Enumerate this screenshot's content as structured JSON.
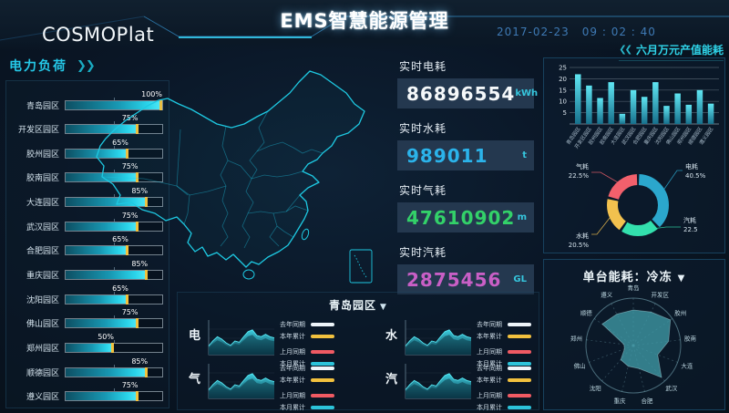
{
  "header": {
    "logo": "COSMOPlat",
    "title": "EMS智慧能源管理",
    "date": "2017-02-23",
    "time": "09 : 02 : 40"
  },
  "left_panel": {
    "title": "电力负荷",
    "chevron_icon": "❯❯"
  },
  "right_top": {
    "title": "六月万元产值能耗",
    "chevron_icon": "❮❮"
  },
  "right_bottom": {
    "title": "单台能耗：冷冻",
    "dropdown_icon": "▼"
  },
  "stats": {
    "items": [
      {
        "label": "实时电耗",
        "value": "86896554",
        "unit": "kWh",
        "color": "#f5f8fa"
      },
      {
        "label": "实时水耗",
        "value": "989011",
        "unit": "t",
        "color": "#2bb3ea"
      },
      {
        "label": "实时气耗",
        "value": "47610902",
        "unit": "m",
        "color": "#33d169"
      },
      {
        "label": "实时汽耗",
        "value": "2875456",
        "unit": "GL",
        "color": "#c95fc6"
      }
    ]
  },
  "bottom_panel": {
    "park": "青岛园区",
    "dropdown_icon": "▼",
    "charts": [
      "电",
      "水",
      "气",
      "汽"
    ],
    "legend": [
      {
        "label": "去年同期",
        "color": "#eef5fa"
      },
      {
        "label": "本年累计",
        "color": "#f2c13e"
      },
      {
        "label": "上月同期",
        "color": "#f05a63"
      },
      {
        "label": "本月累计",
        "color": "#2cc3da"
      }
    ]
  },
  "chart_data": [
    {
      "id": "monthly_output_energy",
      "type": "bar",
      "title": "六月万元产值能耗",
      "categories": [
        "青岛园区",
        "开发区园区",
        "胶州园区",
        "胶南园区",
        "大连园区",
        "武汉园区",
        "合肥园区",
        "重庆园区",
        "沈阳园区",
        "佛山园区",
        "郑州园区",
        "顺德园区",
        "遵义园区"
      ],
      "values": [
        22,
        17,
        11.5,
        18.5,
        4.5,
        15,
        12,
        18.5,
        8,
        13.5,
        8.5,
        15,
        9
      ],
      "ylim": [
        0,
        25
      ],
      "yticks": [
        5,
        10,
        15,
        20,
        25
      ],
      "grid": true,
      "bar_color_top": "#5fe5f2",
      "bar_color_bottom": "#17708c"
    },
    {
      "id": "energy_share",
      "type": "pie",
      "donut": true,
      "labels": [
        "电耗",
        "汽耗",
        "水耗",
        "气耗"
      ],
      "values": [
        40.5,
        22.5,
        20.5,
        22.5
      ],
      "display": [
        "40.5%",
        "22.5",
        "20.5%",
        "22.5%"
      ],
      "colors": [
        "#2ba7cd",
        "#33e0ad",
        "#f2c14e",
        "#f2606c"
      ],
      "legend_position": "callout-lines"
    },
    {
      "id": "per_unit_energy_freezing",
      "type": "radar",
      "title": "单台能耗：冷冻",
      "categories": [
        "青岛",
        "开发区",
        "胶州",
        "胶南",
        "大连",
        "武汉",
        "合肥",
        "重庆",
        "沈阳",
        "佛山",
        "郑州",
        "顺德",
        "遵义"
      ],
      "values": [
        75,
        80,
        95,
        75,
        55,
        90,
        50,
        45,
        40,
        20,
        20,
        80,
        75
      ],
      "max": 100,
      "fill_color": "#3f9aa7"
    },
    {
      "id": "power_load",
      "type": "bar-horizontal",
      "title": "电力负荷",
      "categories": [
        "青岛园区",
        "开发区园区",
        "胶州园区",
        "胶南园区",
        "大连园区",
        "武汉园区",
        "合肥园区",
        "重庆园区",
        "沈阳园区",
        "佛山园区",
        "郑州园区",
        "顺德园区",
        "遵义园区"
      ],
      "values": [
        100,
        75,
        65,
        75,
        85,
        75,
        65,
        85,
        65,
        75,
        50,
        85,
        75
      ],
      "display": [
        "100%",
        "75%",
        "65%",
        "75%",
        "85%",
        "75%",
        "65%",
        "85%",
        "65%",
        "75%",
        "50%",
        "85%",
        "75%"
      ],
      "unit": "%",
      "xlim": [
        0,
        100
      ]
    },
    {
      "id": "park_trends",
      "type": "area",
      "park": "青岛园区",
      "charts": [
        "电",
        "水",
        "气",
        "汽"
      ],
      "series_legend": [
        "去年同期",
        "本年累计",
        "上月同期",
        "本月累计"
      ],
      "x": [
        1,
        2,
        3,
        4,
        5,
        6,
        7,
        8,
        9,
        10,
        11,
        12,
        13,
        14,
        15,
        16
      ],
      "values": [
        28,
        45,
        58,
        50,
        38,
        30,
        44,
        40,
        58,
        74,
        80,
        62,
        58,
        66,
        58,
        54
      ],
      "ylim": [
        0,
        100
      ]
    }
  ]
}
